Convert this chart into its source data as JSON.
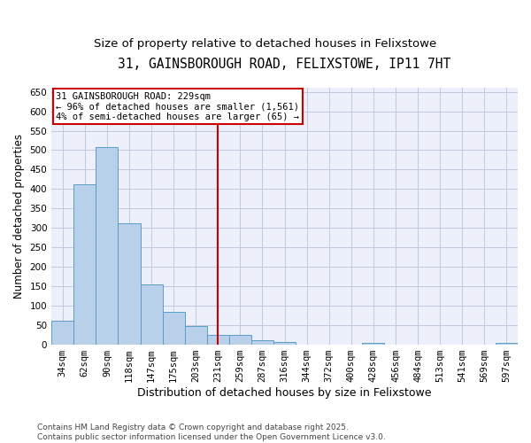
{
  "title": "31, GAINSBOROUGH ROAD, FELIXSTOWE, IP11 7HT",
  "subtitle": "Size of property relative to detached houses in Felixstowe",
  "xlabel": "Distribution of detached houses by size in Felixstowe",
  "ylabel": "Number of detached properties",
  "categories": [
    "34sqm",
    "62sqm",
    "90sqm",
    "118sqm",
    "147sqm",
    "175sqm",
    "203sqm",
    "231sqm",
    "259sqm",
    "287sqm",
    "316sqm",
    "344sqm",
    "372sqm",
    "400sqm",
    "428sqm",
    "456sqm",
    "484sqm",
    "513sqm",
    "541sqm",
    "569sqm",
    "597sqm"
  ],
  "values": [
    62,
    413,
    507,
    313,
    155,
    85,
    47,
    25,
    25,
    12,
    8,
    0,
    0,
    0,
    5,
    0,
    0,
    0,
    0,
    0,
    5
  ],
  "bar_color": "#b8d0ea",
  "bar_edge_color": "#5a9dc8",
  "vline_x_index": 7,
  "vline_color": "#cc0000",
  "annotation_text": "31 GAINSBOROUGH ROAD: 229sqm\n← 96% of detached houses are smaller (1,561)\n4% of semi-detached houses are larger (65) →",
  "annotation_box_color": "#ffffff",
  "annotation_box_edge_color": "#cc0000",
  "ylim": [
    0,
    660
  ],
  "yticks": [
    0,
    50,
    100,
    150,
    200,
    250,
    300,
    350,
    400,
    450,
    500,
    550,
    600,
    650
  ],
  "background_color": "#edf0fa",
  "grid_color": "#c0c8de",
  "footer_text": "Contains HM Land Registry data © Crown copyright and database right 2025.\nContains public sector information licensed under the Open Government Licence v3.0.",
  "title_fontsize": 10.5,
  "subtitle_fontsize": 9.5,
  "xlabel_fontsize": 9,
  "ylabel_fontsize": 8.5,
  "tick_fontsize": 7.5,
  "annotation_fontsize": 7.5,
  "footer_fontsize": 6.5
}
